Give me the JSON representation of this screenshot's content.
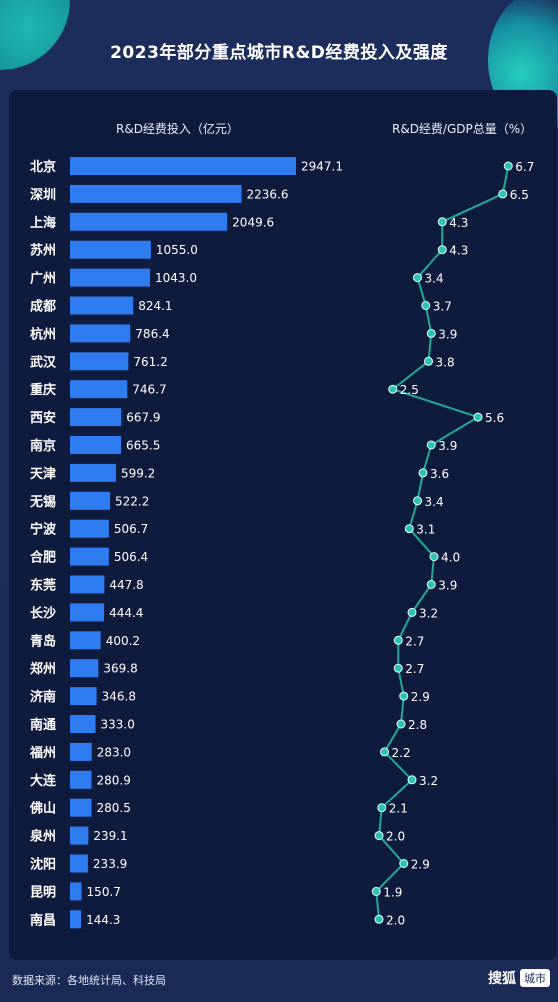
{
  "title": "2023年部分重点城市R&D经费投入及强度",
  "bar_header": "R&D经费投入（亿元）",
  "ratio_header": "R&D经费/GDP总量（%）",
  "source": "数据来源：各地统计局、科技局",
  "brand": {
    "name": "搜狐",
    "tag": "城市"
  },
  "colors": {
    "bar": "#2f7bf0",
    "line": "#1fa99a",
    "marker": "#2cc3b3",
    "text": "#ffffff"
  },
  "chart_data": [
    {
      "type": "bar",
      "orientation": "horizontal",
      "title": "R&D经费投入（亿元）",
      "categories": [
        "北京",
        "深圳",
        "上海",
        "苏州",
        "广州",
        "成都",
        "杭州",
        "武汉",
        "重庆",
        "西安",
        "南京",
        "天津",
        "无锡",
        "宁波",
        "合肥",
        "东莞",
        "长沙",
        "青岛",
        "郑州",
        "济南",
        "南通",
        "福州",
        "大连",
        "佛山",
        "泉州",
        "沈阳",
        "昆明",
        "南昌"
      ],
      "values": [
        2947.1,
        2236.6,
        2049.6,
        1055.0,
        1043.0,
        824.1,
        786.4,
        761.2,
        746.7,
        667.9,
        665.5,
        599.2,
        522.2,
        506.7,
        506.4,
        447.8,
        444.4,
        400.2,
        369.8,
        346.8,
        333.0,
        283.0,
        280.9,
        280.5,
        239.1,
        233.9,
        150.7,
        144.3
      ],
      "labels": [
        "2947.1",
        "2236.6",
        "2049.6",
        "1055.0",
        "1043.0",
        "824.1",
        "786.4",
        "761.2",
        "746.7",
        "667.9",
        "665.5",
        "599.2",
        "522.2",
        "506.7",
        "506.4",
        "447.8",
        "444.4",
        "400.2",
        "369.8",
        "346.8",
        "333.0",
        "283.0",
        "280.9",
        "280.5",
        "239.1",
        "233.9",
        "150.7",
        "144.3"
      ]
    },
    {
      "type": "line",
      "orientation": "vertical",
      "title": "R&D经费/GDP总量（%）",
      "categories": [
        "北京",
        "深圳",
        "上海",
        "苏州",
        "广州",
        "成都",
        "杭州",
        "武汉",
        "重庆",
        "西安",
        "南京",
        "天津",
        "无锡",
        "宁波",
        "合肥",
        "东莞",
        "长沙",
        "青岛",
        "郑州",
        "济南",
        "南通",
        "福州",
        "大连",
        "佛山",
        "泉州",
        "沈阳",
        "昆明",
        "南昌"
      ],
      "values": [
        6.7,
        6.5,
        4.3,
        4.3,
        3.4,
        3.7,
        3.9,
        3.8,
        2.5,
        5.6,
        3.9,
        3.6,
        3.4,
        3.1,
        4.0,
        3.9,
        3.2,
        2.7,
        2.7,
        2.9,
        2.8,
        2.2,
        3.2,
        2.1,
        2.0,
        2.9,
        1.9,
        2.0
      ],
      "labels": [
        "6.7",
        "6.5",
        "4.3",
        "4.3",
        "3.4",
        "3.7",
        "3.9",
        "3.8",
        "2.5",
        "5.6",
        "3.9",
        "3.6",
        "3.4",
        "3.1",
        "4.0",
        "3.9",
        "3.2",
        "2.7",
        "2.7",
        "2.9",
        "2.8",
        "2.2",
        "3.2",
        "2.1",
        "2.0",
        "2.9",
        "1.9",
        "2.0"
      ]
    }
  ]
}
